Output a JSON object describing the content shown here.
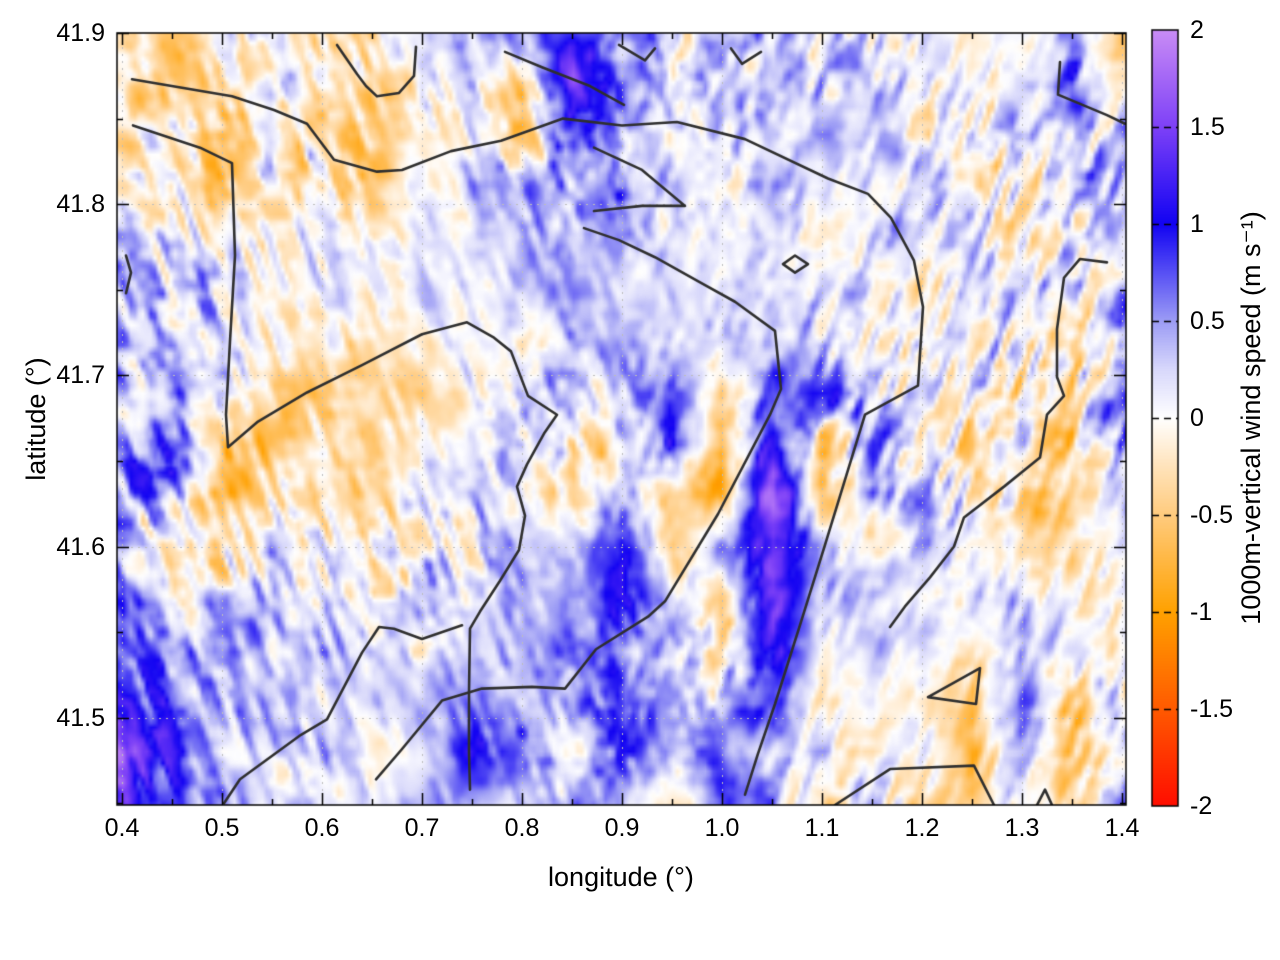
{
  "chart_data": {
    "type": "heatmap",
    "title": "",
    "xlabel": "longitude (°)",
    "ylabel": "latitude (°)",
    "x_range": [
      0.395,
      1.404
    ],
    "y_range": [
      41.449,
      41.9
    ],
    "x_ticks": [
      0.4,
      0.5,
      0.6,
      0.7,
      0.8,
      0.9,
      1.0,
      1.1,
      1.2,
      1.3,
      1.4
    ],
    "x_tick_labels": [
      "0.4",
      "0.5",
      "0.6",
      "0.7",
      "0.8",
      "0.9",
      "1.0",
      "1.1",
      "1.2",
      "1.3",
      "1.4"
    ],
    "x_minor_ticks": [
      0.45,
      0.55,
      0.65,
      0.75,
      0.85,
      0.95,
      1.05,
      1.15,
      1.25,
      1.35
    ],
    "y_ticks": [
      41.5,
      41.6,
      41.7,
      41.8,
      41.9
    ],
    "y_tick_labels": [
      "41.5",
      "41.6",
      "41.7",
      "41.8",
      "41.9"
    ],
    "y_minor_ticks": [
      41.45,
      41.55,
      41.65,
      41.75,
      41.85
    ],
    "grid": true,
    "legend_position": "none",
    "colorbar": {
      "label": "1000m-vertical wind speed (m s⁻¹)",
      "range": [
        -2,
        2
      ],
      "ticks": [
        2,
        1.5,
        1,
        0.5,
        0,
        -0.5,
        -1,
        -1.5,
        -2
      ],
      "tick_labels": [
        "2",
        "1.5",
        "1",
        "0.5",
        "0",
        "-0.5",
        "-1",
        "-1.5",
        "-2"
      ],
      "palette": [
        {
          "v": -2,
          "c": "#ff0d00"
        },
        {
          "v": -1.5,
          "c": "#ff5a00"
        },
        {
          "v": -1,
          "c": "#ffa100"
        },
        {
          "v": -0.5,
          "c": "#ffcb7e"
        },
        {
          "v": -0.25,
          "c": "#ffe3bb"
        },
        {
          "v": 0,
          "c": "#ffffff"
        },
        {
          "v": 0.25,
          "c": "#d8d8fb"
        },
        {
          "v": 0.5,
          "c": "#9c9cf5"
        },
        {
          "v": 1,
          "c": "#1203f2"
        },
        {
          "v": 1.5,
          "c": "#7e41f7"
        },
        {
          "v": 2,
          "c": "#c98cf5"
        }
      ]
    },
    "heatmap": {
      "comment_units": "approximate 1000m vertical wind speed (m/s) on lon/lat grid, read from figure colors",
      "lon0": 0.4,
      "dlon": 0.05,
      "ncols": 21,
      "lat0": 41.9,
      "dlat": 0.03,
      "nrows": 16,
      "values": [
        [
          -0.3,
          -0.4,
          -0.2,
          0.1,
          -0.3,
          -0.2,
          0.2,
          0.3,
          0.6,
          0.9,
          0.5,
          0.2,
          0.3,
          0.4,
          0.2,
          0.1,
          0.2,
          -0.2,
          0.1,
          0.5,
          -0.2
        ],
        [
          -0.2,
          -0.4,
          -0.3,
          0.2,
          -0.4,
          -0.3,
          0.0,
          0.3,
          -0.5,
          1.6,
          0.6,
          0.3,
          0.2,
          0.3,
          0.3,
          0.2,
          0.1,
          -0.1,
          0.0,
          0.6,
          0.0
        ],
        [
          -0.3,
          -0.2,
          -0.4,
          -0.1,
          -0.3,
          -0.5,
          -0.2,
          0.1,
          -0.8,
          1.2,
          0.4,
          0.1,
          0.3,
          0.2,
          0.4,
          0.3,
          0.0,
          -0.2,
          0.2,
          0.3,
          0.3
        ],
        [
          -0.2,
          -0.1,
          -0.3,
          0.0,
          -0.2,
          -0.3,
          0.1,
          0.3,
          0.6,
          0.5,
          0.5,
          0.2,
          0.0,
          0.3,
          0.2,
          0.1,
          0.2,
          0.0,
          -0.1,
          0.2,
          0.4
        ],
        [
          0.4,
          0.3,
          -0.1,
          0.1,
          0.0,
          -0.2,
          0.0,
          0.2,
          0.4,
          0.3,
          0.4,
          0.1,
          0.2,
          0.1,
          0.0,
          0.2,
          0.3,
          0.1,
          -0.2,
          0.0,
          0.5
        ],
        [
          0.5,
          0.4,
          0.2,
          -0.1,
          0.1,
          0.0,
          0.2,
          0.0,
          0.3,
          0.5,
          0.2,
          0.3,
          0.1,
          0.2,
          0.3,
          0.0,
          -0.2,
          0.1,
          0.3,
          -0.1,
          0.6
        ],
        [
          0.3,
          0.5,
          0.3,
          0.0,
          -0.2,
          -0.3,
          -0.1,
          0.2,
          0.0,
          0.3,
          0.4,
          0.2,
          0.3,
          0.5,
          0.2,
          -0.1,
          0.1,
          0.2,
          0.0,
          -0.3,
          0.4
        ],
        [
          0.5,
          0.7,
          0.2,
          -0.3,
          -0.4,
          -0.2,
          -0.3,
          0.0,
          0.2,
          0.1,
          0.5,
          0.8,
          -0.3,
          0.6,
          0.9,
          0.2,
          -0.1,
          0.3,
          -0.2,
          -0.4,
          0.8
        ],
        [
          0.3,
          0.8,
          -0.5,
          -0.6,
          -0.2,
          -0.4,
          -0.1,
          0.1,
          0.3,
          -0.2,
          -0.2,
          0.9,
          -0.8,
          1.2,
          -0.5,
          0.5,
          0.1,
          -0.2,
          0.2,
          -0.5,
          0.6
        ],
        [
          0.5,
          0.4,
          -0.6,
          -0.3,
          -0.4,
          -0.2,
          0.2,
          0.3,
          0.1,
          -0.3,
          0.3,
          -0.4,
          -0.9,
          1.9,
          -0.6,
          0.3,
          0.2,
          0.1,
          -0.3,
          -0.6,
          0.3
        ],
        [
          0.4,
          -0.4,
          -0.5,
          0.2,
          0.0,
          -0.3,
          0.1,
          0.2,
          0.4,
          0.2,
          1.0,
          -0.5,
          0.4,
          1.5,
          0.5,
          -0.2,
          0.3,
          0.2,
          -0.5,
          -0.4,
          0.2
        ],
        [
          0.8,
          -0.3,
          0.3,
          0.4,
          0.2,
          0.0,
          0.3,
          0.1,
          0.5,
          0.3,
          1.2,
          0.3,
          -0.5,
          1.4,
          0.3,
          0.4,
          -0.1,
          0.3,
          0.4,
          -0.2,
          0.0
        ],
        [
          0.9,
          0.3,
          0.5,
          0.2,
          0.4,
          0.3,
          0.0,
          0.4,
          0.2,
          0.8,
          0.5,
          0.5,
          -0.3,
          1.2,
          0.0,
          0.2,
          0.3,
          -0.4,
          0.5,
          0.3,
          -0.2
        ],
        [
          1.1,
          0.6,
          0.4,
          0.5,
          0.1,
          0.2,
          0.4,
          0.6,
          0.3,
          0.4,
          1.0,
          0.3,
          0.4,
          0.9,
          -0.3,
          0.1,
          -0.2,
          -0.6,
          0.6,
          -0.5,
          0.1
        ],
        [
          1.5,
          0.9,
          0.2,
          0.3,
          0.4,
          0.0,
          0.2,
          1.0,
          0.6,
          0.2,
          0.8,
          0.5,
          0.6,
          0.2,
          0.3,
          -0.4,
          0.2,
          -0.8,
          0.4,
          -0.6,
          0.2
        ],
        [
          1.3,
          0.7,
          0.4,
          0.1,
          0.2,
          0.3,
          0.5,
          0.4,
          0.3,
          0.6,
          0.3,
          -0.4,
          0.8,
          0.4,
          -0.2,
          0.3,
          -0.3,
          -0.5,
          0.2,
          -0.3,
          0.4
        ]
      ]
    },
    "contours": {
      "color": "#2f2f2f",
      "lines": [
        [
          [
            0.41,
            41.873
          ],
          [
            0.51,
            41.863
          ],
          [
            0.552,
            41.855
          ],
          [
            0.585,
            41.847
          ],
          [
            0.612,
            41.826
          ],
          [
            0.655,
            41.819
          ],
          [
            0.68,
            41.82
          ],
          [
            0.729,
            41.831
          ],
          [
            0.779,
            41.837
          ],
          [
            0.841,
            41.85
          ],
          [
            0.9,
            41.846
          ],
          [
            0.955,
            41.848
          ],
          [
            1.023,
            41.838
          ],
          [
            1.106,
            41.815
          ],
          [
            1.146,
            41.806
          ],
          [
            1.169,
            41.792
          ],
          [
            1.192,
            41.767
          ],
          [
            1.201,
            41.74
          ],
          [
            1.196,
            41.694
          ],
          [
            1.143,
            41.677
          ],
          [
            1.103,
            41.601
          ],
          [
            1.079,
            41.556
          ],
          [
            1.053,
            41.508
          ],
          [
            1.036,
            41.479
          ],
          [
            1.023,
            41.455
          ]
        ],
        [
          [
            0.411,
            41.846
          ],
          [
            0.478,
            41.833
          ],
          [
            0.51,
            41.824
          ],
          [
            0.513,
            41.77
          ],
          [
            0.508,
            41.72
          ],
          [
            0.504,
            41.677
          ],
          [
            0.506,
            41.658
          ],
          [
            0.536,
            41.673
          ],
          [
            0.585,
            41.69
          ],
          [
            0.64,
            41.706
          ],
          [
            0.7,
            41.724
          ],
          [
            0.745,
            41.731
          ],
          [
            0.772,
            41.722
          ],
          [
            0.789,
            41.714
          ],
          [
            0.806,
            41.688
          ],
          [
            0.835,
            41.677
          ],
          [
            0.822,
            41.666
          ],
          [
            0.805,
            41.648
          ],
          [
            0.795,
            41.635
          ],
          [
            0.803,
            41.618
          ],
          [
            0.797,
            41.598
          ],
          [
            0.778,
            41.58
          ],
          [
            0.758,
            41.562
          ],
          [
            0.748,
            41.552
          ],
          [
            0.747,
            41.515
          ],
          [
            0.747,
            41.48
          ],
          [
            0.748,
            41.458
          ]
        ],
        [
          [
            0.74,
            41.554
          ],
          [
            0.7,
            41.546
          ],
          [
            0.672,
            41.552
          ],
          [
            0.657,
            41.553
          ],
          [
            0.64,
            41.538
          ],
          [
            0.605,
            41.499
          ],
          [
            0.579,
            41.49
          ],
          [
            0.518,
            41.464
          ],
          [
            0.502,
            41.45
          ]
        ],
        [
          [
            0.654,
            41.464
          ],
          [
            0.679,
            41.481
          ],
          [
            0.72,
            41.51
          ],
          [
            0.76,
            41.517
          ],
          [
            0.81,
            41.518
          ],
          [
            0.843,
            41.517
          ],
          [
            0.874,
            41.54
          ],
          [
            0.926,
            41.559
          ],
          [
            0.943,
            41.568
          ],
          [
            0.996,
            41.619
          ],
          [
            1.048,
            41.677
          ],
          [
            1.059,
            41.692
          ],
          [
            1.053,
            41.726
          ],
          [
            1.013,
            41.743
          ],
          [
            0.979,
            41.754
          ],
          [
            0.933,
            41.769
          ],
          [
            0.897,
            41.779
          ],
          [
            0.862,
            41.786
          ]
        ],
        [
          [
            1.385,
            41.766
          ],
          [
            1.358,
            41.768
          ],
          [
            1.342,
            41.757
          ],
          [
            1.335,
            41.727
          ],
          [
            1.335,
            41.699
          ],
          [
            1.342,
            41.688
          ],
          [
            1.325,
            41.677
          ],
          [
            1.318,
            41.652
          ],
          [
            1.282,
            41.635
          ],
          [
            1.242,
            41.617
          ],
          [
            1.232,
            41.6
          ],
          [
            1.208,
            41.582
          ],
          [
            1.183,
            41.565
          ],
          [
            1.168,
            41.553
          ]
        ],
        [
          [
            1.338,
            41.883
          ],
          [
            1.336,
            41.864
          ],
          [
            1.385,
            41.852
          ],
          [
            1.403,
            41.847
          ]
        ],
        [
          [
            0.615,
            41.893
          ],
          [
            0.635,
            41.876
          ],
          [
            0.644,
            41.869
          ],
          [
            0.655,
            41.863
          ],
          [
            0.677,
            41.865
          ],
          [
            0.692,
            41.875
          ],
          [
            0.694,
            41.892
          ]
        ],
        [
          [
            0.897,
            41.893
          ],
          [
            0.923,
            41.884
          ],
          [
            0.933,
            41.891
          ]
        ],
        [
          [
            1.009,
            41.891
          ],
          [
            1.02,
            41.882
          ],
          [
            1.039,
            41.889
          ]
        ],
        [
          [
            0.872,
            41.833
          ],
          [
            0.92,
            41.82
          ],
          [
            0.963,
            41.799
          ],
          [
            0.92,
            41.799
          ],
          [
            0.872,
            41.796
          ]
        ],
        [
          [
            1.061,
            41.765
          ],
          [
            1.073,
            41.76
          ],
          [
            1.086,
            41.765
          ],
          [
            1.073,
            41.77
          ],
          [
            1.061,
            41.765
          ]
        ],
        [
          [
            0.404,
            41.77
          ],
          [
            0.409,
            41.76
          ],
          [
            0.404,
            41.748
          ]
        ],
        [
          [
            1.206,
            41.512
          ],
          [
            1.258,
            41.529
          ],
          [
            1.254,
            41.508
          ],
          [
            1.206,
            41.512
          ]
        ],
        [
          [
            1.113,
            41.449
          ],
          [
            1.168,
            41.47
          ],
          [
            1.252,
            41.472
          ],
          [
            1.272,
            41.449
          ]
        ],
        [
          [
            0.783,
            41.889
          ],
          [
            0.82,
            41.88
          ],
          [
            0.868,
            41.869
          ],
          [
            0.902,
            41.858
          ]
        ],
        [
          [
            1.315,
            41.449
          ],
          [
            1.323,
            41.458
          ],
          [
            1.33,
            41.449
          ]
        ]
      ]
    }
  }
}
